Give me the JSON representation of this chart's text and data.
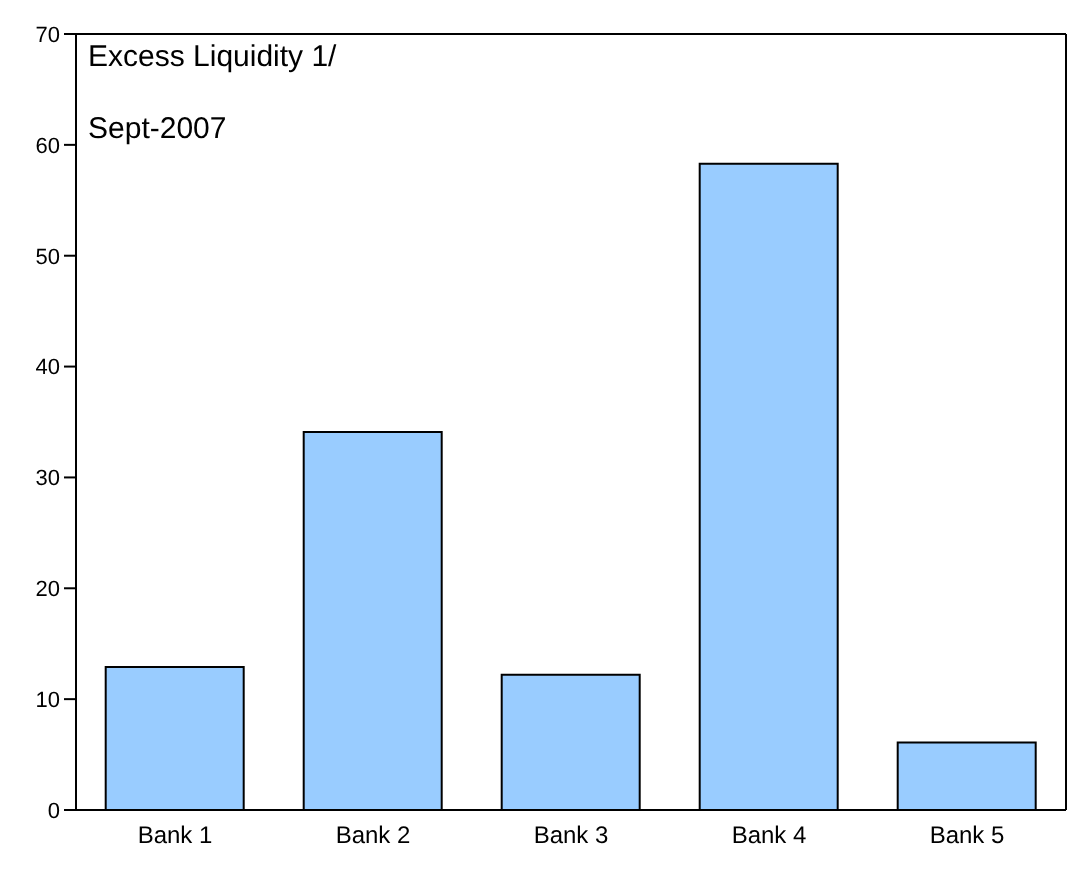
{
  "chart_data": {
    "type": "bar",
    "title": "Excess Liquidity 1/",
    "subtitle": "Sept-2007",
    "categories": [
      "Bank 1",
      "Bank 2",
      "Bank 3",
      "Bank 4",
      "Bank 5"
    ],
    "values": [
      12.9,
      34.1,
      12.2,
      58.3,
      6.1
    ],
    "color": "#99ccff",
    "ylim": [
      0,
      70
    ],
    "yticks": [
      0,
      10,
      20,
      30,
      40,
      50,
      60,
      70
    ],
    "grid": false
  }
}
